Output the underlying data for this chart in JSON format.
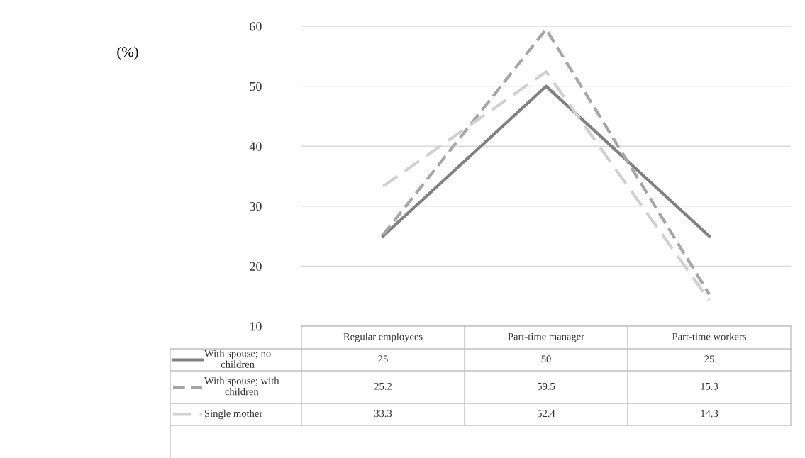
{
  "chart_data": {
    "type": "line",
    "annotations": [
      "(%)"
    ],
    "legend": "bottom",
    "categories": [
      "Regular employees",
      "Part-time manager",
      "Part-time workers"
    ],
    "series": [
      {
        "name": "With spouse; no children",
        "color": "#808080",
        "line_style": "solid",
        "values": [
          25,
          50,
          25
        ]
      },
      {
        "name": "With spouse; with children",
        "color": "#a6a6a6",
        "line_style": "dashed",
        "values": [
          25.2,
          59.5,
          15.3
        ]
      },
      {
        "name": "Single mother",
        "color": "#d0d0d0",
        "line_style": "dashed",
        "values": [
          33.3,
          52.4,
          14.3
        ]
      }
    ],
    "ylim": [
      10,
      60
    ],
    "yticks": [
      10,
      20,
      30,
      40,
      50,
      60
    ],
    "grid": "y",
    "marker": "none",
    "data_labels": true
  }
}
